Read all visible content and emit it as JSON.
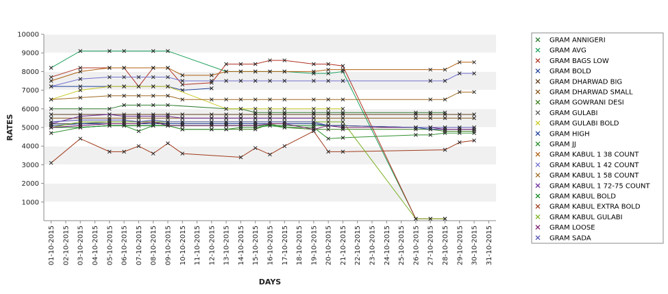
{
  "chart_data": {
    "type": "line",
    "xlabel": "DAYS",
    "ylabel": "RATES",
    "ylim": [
      0,
      10000
    ],
    "yticks": [
      1000,
      2000,
      3000,
      4000,
      5000,
      6000,
      7000,
      8000,
      9000,
      10000
    ],
    "categories": [
      "01-10-2015",
      "02-10-2015",
      "03-10-2015",
      "04-10-2015",
      "05-10-2015",
      "06-10-2015",
      "07-10-2015",
      "08-10-2015",
      "09-10-2015",
      "10-10-2015",
      "11-10-2015",
      "12-10-2015",
      "13-10-2015",
      "14-10-2015",
      "15-10-2015",
      "16-10-2015",
      "17-10-2015",
      "18-10-2015",
      "19-10-2015",
      "20-10-2015",
      "21-10-2015",
      "22-10-2015",
      "23-10-2015",
      "24-10-2015",
      "25-10-2015",
      "26-10-2015",
      "27-10-2015",
      "28-10-2015",
      "29-10-2015",
      "30-10-2015",
      "31-10-2015"
    ],
    "grid": true,
    "legend_position": "right",
    "series": [
      {
        "name": "GRAM ANNIGERI",
        "color": "#2e7d32",
        "x": [
          "01-10-2015",
          "03-10-2015",
          "05-10-2015",
          "06-10-2015",
          "07-10-2015",
          "08-10-2015",
          "09-10-2015",
          "13-10-2015",
          "14-10-2015",
          "15-10-2015",
          "16-10-2015",
          "17-10-2015",
          "19-10-2015",
          "20-10-2015",
          "21-10-2015",
          "26-10-2015",
          "27-10-2015",
          "28-10-2015"
        ],
        "values": [
          6000,
          6000,
          6000,
          6200,
          6200,
          6200,
          6200,
          6000,
          6000,
          5800,
          5800,
          5800,
          5800,
          5800,
          5800,
          5800,
          5800,
          5800
        ]
      },
      {
        "name": "GRAM AVG",
        "color": "#1aa05a",
        "x": [
          "01-10-2015",
          "03-10-2015",
          "05-10-2015",
          "06-10-2015",
          "08-10-2015",
          "09-10-2015",
          "13-10-2015",
          "14-10-2015",
          "15-10-2015",
          "16-10-2015",
          "17-10-2015",
          "19-10-2015",
          "20-10-2015",
          "21-10-2015",
          "26-10-2015"
        ],
        "values": [
          8200,
          9100,
          9100,
          9100,
          9100,
          9100,
          8000,
          8000,
          8000,
          8000,
          8000,
          7900,
          7900,
          8000,
          100
        ]
      },
      {
        "name": "GRAM BAGS LOW",
        "color": "#b03020",
        "x": [
          "01-10-2015",
          "03-10-2015",
          "05-10-2015",
          "06-10-2015",
          "07-10-2015",
          "08-10-2015",
          "09-10-2015",
          "10-10-2015",
          "12-10-2015",
          "13-10-2015",
          "14-10-2015",
          "15-10-2015",
          "16-10-2015",
          "17-10-2015",
          "19-10-2015",
          "20-10-2015",
          "21-10-2015",
          "26-10-2015",
          "27-10-2015",
          "28-10-2015"
        ],
        "values": [
          7700,
          8200,
          8200,
          8200,
          7200,
          8200,
          8200,
          7300,
          7400,
          8400,
          8400,
          8400,
          8600,
          8600,
          8400,
          8400,
          8300,
          100,
          100,
          100
        ]
      },
      {
        "name": "GRAM BOLD",
        "color": "#1f3f99",
        "x": [
          "01-10-2015",
          "03-10-2015",
          "05-10-2015",
          "06-10-2015",
          "08-10-2015",
          "09-10-2015",
          "10-10-2015",
          "12-10-2015"
        ],
        "values": [
          7200,
          7200,
          7200,
          7200,
          7200,
          7200,
          7000,
          7100
        ]
      },
      {
        "name": "GRAM DHARWAD BIG",
        "color": "#5c3a1a",
        "x": [
          "01-10-2015",
          "03-10-2015",
          "05-10-2015",
          "06-10-2015",
          "07-10-2015",
          "08-10-2015",
          "09-10-2015",
          "10-10-2015",
          "12-10-2015",
          "13-10-2015",
          "14-10-2015",
          "15-10-2015",
          "16-10-2015",
          "17-10-2015",
          "19-10-2015",
          "20-10-2015",
          "21-10-2015",
          "26-10-2015",
          "27-10-2015",
          "28-10-2015",
          "29-10-2015",
          "30-10-2015"
        ],
        "values": [
          5700,
          5700,
          5700,
          5700,
          5700,
          5700,
          5700,
          5700,
          5700,
          5700,
          5700,
          5700,
          5700,
          5700,
          5700,
          5700,
          5700,
          5700,
          5700,
          5700,
          5700,
          5700
        ]
      },
      {
        "name": "GRAM DHARWAD SMALL",
        "color": "#8a5a20",
        "x": [
          "01-10-2015",
          "03-10-2015",
          "05-10-2015",
          "06-10-2015",
          "07-10-2015",
          "08-10-2015",
          "09-10-2015",
          "10-10-2015",
          "12-10-2015",
          "13-10-2015",
          "14-10-2015",
          "15-10-2015",
          "16-10-2015",
          "17-10-2015",
          "19-10-2015",
          "20-10-2015",
          "21-10-2015",
          "26-10-2015",
          "27-10-2015",
          "28-10-2015",
          "29-10-2015",
          "30-10-2015"
        ],
        "values": [
          5500,
          5500,
          5500,
          5500,
          5500,
          5500,
          5500,
          5500,
          5500,
          5500,
          5500,
          5500,
          5500,
          5500,
          5500,
          5500,
          5500,
          5500,
          5500,
          5500,
          5500,
          5500
        ]
      },
      {
        "name": "GRAM GOWRANI DESI",
        "color": "#3a7a1a",
        "x": [
          "01-10-2015",
          "03-10-2015",
          "05-10-2015",
          "06-10-2015",
          "07-10-2015",
          "08-10-2015",
          "09-10-2015",
          "10-10-2015",
          "12-10-2015",
          "13-10-2015",
          "14-10-2015",
          "15-10-2015",
          "16-10-2015",
          "17-10-2015",
          "19-10-2015",
          "20-10-2015",
          "21-10-2015",
          "26-10-2015",
          "27-10-2015",
          "28-10-2015",
          "29-10-2015",
          "30-10-2015"
        ],
        "values": [
          5000,
          5000,
          5100,
          5100,
          5100,
          5100,
          5100,
          4900,
          4900,
          4900,
          4900,
          4900,
          5200,
          5000,
          4900,
          4900,
          4900,
          4900,
          4900,
          4800,
          4800,
          4800
        ]
      },
      {
        "name": "GRAM GULABI",
        "color": "#555555",
        "x": [
          "01-10-2015",
          "03-10-2015",
          "05-10-2015",
          "06-10-2015",
          "07-10-2015",
          "08-10-2015",
          "09-10-2015",
          "10-10-2015",
          "12-10-2015",
          "13-10-2015",
          "14-10-2015",
          "15-10-2015",
          "16-10-2015",
          "17-10-2015",
          "19-10-2015",
          "20-10-2015",
          "21-10-2015",
          "26-10-2015",
          "27-10-2015",
          "28-10-2015",
          "29-10-2015",
          "30-10-2015"
        ],
        "values": [
          5200,
          5200,
          5300,
          5300,
          5300,
          5300,
          5200,
          5200,
          5200,
          5200,
          5200,
          5200,
          5200,
          5200,
          5200,
          5100,
          5100,
          5000,
          5000,
          5000,
          5000,
          5000
        ]
      },
      {
        "name": "GRAM GULABI BOLD",
        "color": "#c8c820",
        "x": [
          "01-10-2015",
          "03-10-2015",
          "05-10-2015",
          "06-10-2015",
          "07-10-2015",
          "08-10-2015",
          "09-10-2015",
          "13-10-2015",
          "14-10-2015",
          "15-10-2015",
          "16-10-2015",
          "17-10-2015",
          "19-10-2015",
          "20-10-2015",
          "21-10-2015"
        ],
        "values": [
          6500,
          7000,
          7200,
          7200,
          7200,
          7200,
          7200,
          6000,
          6000,
          6000,
          6000,
          6000,
          6000,
          6000,
          6000
        ]
      },
      {
        "name": "GRAM HIGH",
        "color": "#1f3f99",
        "x": [
          "01-10-2015",
          "03-10-2015",
          "05-10-2015",
          "06-10-2015",
          "07-10-2015",
          "08-10-2015",
          "09-10-2015",
          "10-10-2015",
          "12-10-2015",
          "13-10-2015",
          "14-10-2015",
          "15-10-2015",
          "16-10-2015",
          "17-10-2015",
          "19-10-2015",
          "20-10-2015",
          "21-10-2015",
          "26-10-2015",
          "27-10-2015",
          "28-10-2015",
          "29-10-2015",
          "30-10-2015"
        ],
        "values": [
          5100,
          5200,
          5200,
          5200,
          5200,
          5200,
          5200,
          5200,
          5200,
          5200,
          5200,
          5200,
          5200,
          5200,
          5200,
          5100,
          5000,
          5000,
          4900,
          4900,
          4900,
          4900
        ]
      },
      {
        "name": "GRAM JJ",
        "color": "#2f8f2f",
        "x": [
          "01-10-2015",
          "03-10-2015",
          "05-10-2015",
          "06-10-2015",
          "07-10-2015",
          "08-10-2015",
          "09-10-2015",
          "10-10-2015",
          "12-10-2015",
          "13-10-2015",
          "14-10-2015",
          "15-10-2015",
          "16-10-2015",
          "17-10-2015",
          "19-10-2015",
          "20-10-2015",
          "21-10-2015",
          "26-10-2015",
          "27-10-2015",
          "28-10-2015",
          "29-10-2015",
          "30-10-2015"
        ],
        "values": [
          4700,
          5000,
          5100,
          5100,
          4800,
          5100,
          5100,
          4900,
          4900,
          4900,
          5000,
          5000,
          5100,
          5000,
          5000,
          4400,
          4450,
          4600,
          4600,
          4700,
          4700,
          4700
        ]
      },
      {
        "name": "GRAM KABUL 1 38 COUNT",
        "color": "#b06010",
        "x": [
          "01-10-2015",
          "03-10-2015",
          "05-10-2015",
          "06-10-2015",
          "08-10-2015",
          "09-10-2015",
          "10-10-2015",
          "12-10-2015",
          "13-10-2015",
          "14-10-2015",
          "15-10-2015",
          "16-10-2015",
          "17-10-2015",
          "19-10-2015",
          "20-10-2015",
          "21-10-2015",
          "27-10-2015",
          "28-10-2015",
          "29-10-2015",
          "30-10-2015"
        ],
        "values": [
          7500,
          8000,
          8200,
          8200,
          8200,
          8200,
          7800,
          7800,
          8000,
          8000,
          8000,
          8000,
          8000,
          8000,
          8100,
          8100,
          8100,
          8100,
          8500,
          8500
        ]
      },
      {
        "name": "GRAM KABUL 1 42 COUNT",
        "color": "#7070d0",
        "x": [
          "01-10-2015",
          "03-10-2015",
          "05-10-2015",
          "06-10-2015",
          "07-10-2015",
          "08-10-2015",
          "09-10-2015",
          "10-10-2015",
          "12-10-2015",
          "13-10-2015",
          "14-10-2015",
          "15-10-2015",
          "16-10-2015",
          "17-10-2015",
          "19-10-2015",
          "20-10-2015",
          "21-10-2015",
          "27-10-2015",
          "28-10-2015",
          "29-10-2015",
          "30-10-2015"
        ],
        "values": [
          7200,
          7600,
          7700,
          7700,
          7700,
          7700,
          7700,
          7500,
          7500,
          7500,
          7500,
          7500,
          7500,
          7500,
          7500,
          7500,
          7500,
          7500,
          7500,
          7900,
          7900
        ]
      },
      {
        "name": "GRAM KABUL 1 58 COUNT",
        "color": "#a06a20",
        "x": [
          "01-10-2015",
          "03-10-2015",
          "05-10-2015",
          "06-10-2015",
          "07-10-2015",
          "08-10-2015",
          "09-10-2015",
          "10-10-2015",
          "12-10-2015",
          "13-10-2015",
          "14-10-2015",
          "15-10-2015",
          "16-10-2015",
          "17-10-2015",
          "19-10-2015",
          "20-10-2015",
          "21-10-2015",
          "27-10-2015",
          "28-10-2015",
          "29-10-2015",
          "30-10-2015"
        ],
        "values": [
          6500,
          6600,
          6700,
          6700,
          6700,
          6700,
          6700,
          6500,
          6500,
          6500,
          6500,
          6500,
          6500,
          6500,
          6500,
          6500,
          6500,
          6500,
          6500,
          6900,
          6900
        ]
      },
      {
        "name": "GRAM KABUL 1 72-75 COUNT",
        "color": "#6a2a9a",
        "x": [
          "01-10-2015",
          "03-10-2015",
          "05-10-2015",
          "06-10-2015",
          "07-10-2015",
          "08-10-2015",
          "09-10-2015",
          "10-10-2015",
          "12-10-2015",
          "13-10-2015",
          "14-10-2015",
          "15-10-2015",
          "16-10-2015",
          "17-10-2015",
          "19-10-2015"
        ],
        "values": [
          5200,
          5600,
          5700,
          5600,
          5600,
          5600,
          5600,
          5500,
          5500,
          5500,
          5500,
          5500,
          5500,
          5500,
          5500
        ]
      },
      {
        "name": "GRAM KABUL BOLD",
        "color": "#1a8a2a",
        "x": [
          "01-10-2015",
          "03-10-2015",
          "05-10-2015",
          "06-10-2015",
          "07-10-2015",
          "08-10-2015",
          "09-10-2015",
          "10-10-2015",
          "12-10-2015",
          "13-10-2015",
          "14-10-2015",
          "15-10-2015",
          "16-10-2015",
          "17-10-2015",
          "19-10-2015",
          "20-10-2015",
          "21-10-2015",
          "26-10-2015",
          "27-10-2015",
          "28-10-2015"
        ],
        "values": [
          5000,
          5000,
          5100,
          5100,
          5100,
          5100,
          5100,
          5100,
          5100,
          5100,
          5100,
          5100,
          5100,
          5100,
          5100,
          5100,
          5100,
          5000,
          5000,
          5000
        ]
      },
      {
        "name": "GRAM KABUL EXTRA BOLD",
        "color": "#a03a1a",
        "x": [
          "01-10-2015",
          "03-10-2015",
          "05-10-2015",
          "06-10-2015",
          "07-10-2015",
          "08-10-2015",
          "09-10-2015",
          "10-10-2015",
          "14-10-2015",
          "15-10-2015",
          "16-10-2015",
          "17-10-2015",
          "19-10-2015",
          "20-10-2015",
          "21-10-2015",
          "28-10-2015",
          "29-10-2015",
          "30-10-2015"
        ],
        "values": [
          3100,
          4400,
          3700,
          3700,
          4000,
          3600,
          4150,
          3600,
          3400,
          3900,
          3550,
          4000,
          4800,
          3700,
          3700,
          3800,
          4200,
          4300
        ]
      },
      {
        "name": "GRAM KABUL GULABI",
        "color": "#7ab020",
        "x": [
          "01-10-2015",
          "03-10-2015",
          "05-10-2015",
          "06-10-2015",
          "07-10-2015",
          "08-10-2015",
          "09-10-2015",
          "10-10-2015",
          "12-10-2015",
          "13-10-2015",
          "14-10-2015",
          "15-10-2015",
          "16-10-2015",
          "17-10-2015",
          "19-10-2015",
          "20-10-2015",
          "21-10-2015",
          "26-10-2015",
          "27-10-2015",
          "28-10-2015"
        ],
        "values": [
          5000,
          5300,
          5300,
          5300,
          5300,
          5300,
          5300,
          5300,
          5300,
          5300,
          5300,
          5300,
          5300,
          5300,
          5300,
          5300,
          5300,
          100,
          100,
          100
        ]
      },
      {
        "name": "GRAM LOOSE",
        "color": "#7a1a6a",
        "x": [
          "01-10-2015",
          "03-10-2015",
          "05-10-2015",
          "06-10-2015",
          "07-10-2015",
          "08-10-2015",
          "09-10-2015",
          "10-10-2015",
          "12-10-2015",
          "13-10-2015",
          "14-10-2015",
          "15-10-2015",
          "16-10-2015",
          "17-10-2015",
          "19-10-2015",
          "20-10-2015",
          "21-10-2015",
          "26-10-2015",
          "27-10-2015",
          "28-10-2015",
          "29-10-2015",
          "30-10-2015"
        ],
        "values": [
          5000,
          5100,
          5200,
          5200,
          5200,
          5300,
          5100,
          5100,
          5100,
          5100,
          5100,
          5100,
          5200,
          5200,
          4900,
          5100,
          5000,
          5000,
          5000,
          4900,
          4900,
          4900
        ]
      },
      {
        "name": "GRAM SADA",
        "color": "#5050b0",
        "x": [
          "01-10-2015",
          "03-10-2015",
          "05-10-2015",
          "06-10-2015",
          "07-10-2015",
          "08-10-2015",
          "09-10-2015",
          "10-10-2015",
          "12-10-2015",
          "13-10-2015",
          "14-10-2015",
          "15-10-2015",
          "16-10-2015",
          "17-10-2015",
          "19-10-2015",
          "20-10-2015",
          "21-10-2015",
          "26-10-2015",
          "27-10-2015",
          "28-10-2015",
          "29-10-2015",
          "30-10-2015"
        ],
        "values": [
          5300,
          5400,
          5400,
          5400,
          5300,
          5400,
          5300,
          5300,
          5300,
          5300,
          5300,
          5300,
          5300,
          5300,
          5300,
          5100,
          5100,
          5000,
          5000,
          5000,
          5000,
          5000
        ]
      }
    ]
  }
}
